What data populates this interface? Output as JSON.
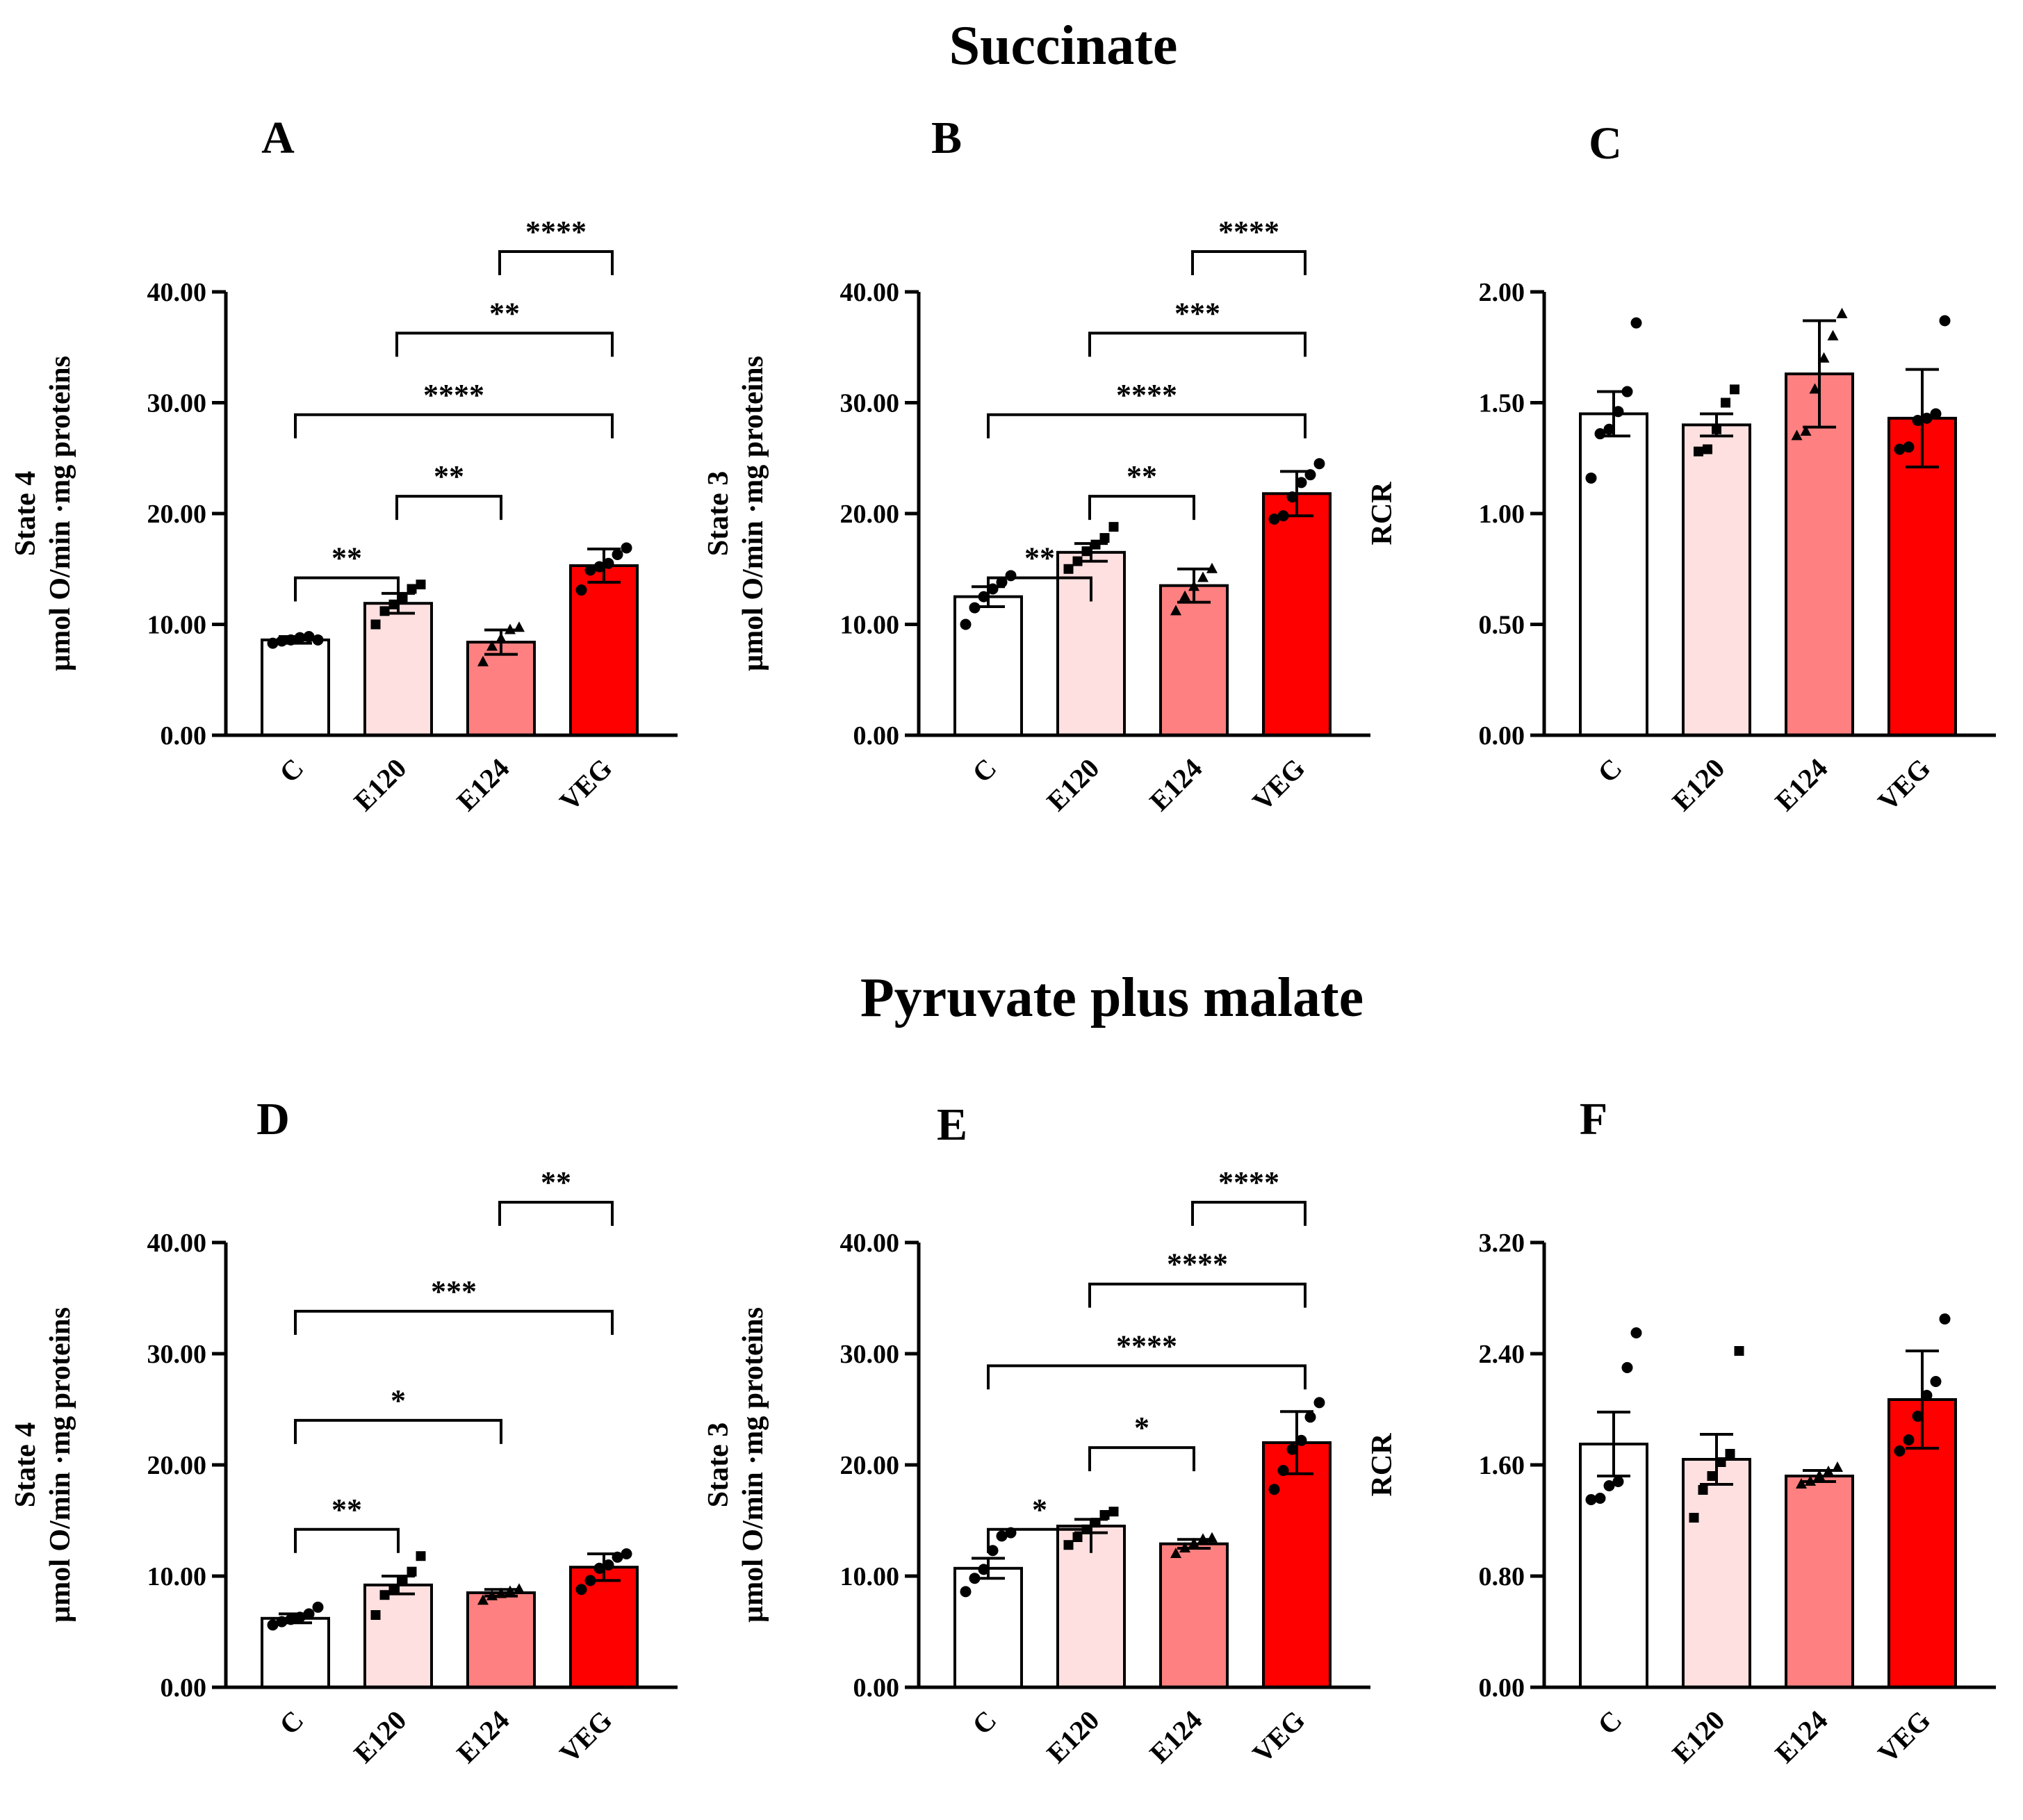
{
  "section_titles": [
    "Succinate",
    "Pyruvate plus malate"
  ],
  "colors": {
    "C": "#ffffff",
    "E120": "#ffe0e0",
    "E124": "#ff8080",
    "VEG": "#ff0000"
  },
  "chart_data": [
    {
      "type": "bar",
      "panel": "A",
      "section": "Succinate",
      "categories": [
        "C",
        "E120",
        "E124",
        "VEG"
      ],
      "values": [
        8.6,
        11.9,
        8.4,
        15.3
      ],
      "sem": [
        0.3,
        0.9,
        1.1,
        1.5
      ],
      "points": [
        [
          8.3,
          8.5,
          8.6,
          8.8,
          8.9,
          8.6
        ],
        [
          10.0,
          11.2,
          11.8,
          12.4,
          13.2,
          13.6
        ],
        [
          6.6,
          8.0,
          8.7,
          9.5,
          9.7
        ],
        [
          13.1,
          14.9,
          15.2,
          15.5,
          16.3,
          16.9
        ]
      ],
      "markers": [
        "circle",
        "square",
        "triangle",
        "circle"
      ],
      "ylabel": [
        "State 4",
        "µmol O/min ·mg proteins"
      ],
      "yticks": [
        "0.00",
        "10.00",
        "20.00",
        "30.00",
        "40.00"
      ],
      "ylim": [
        0,
        40
      ],
      "comparisons": [
        {
          "from": "E124",
          "to": "VEG",
          "label": "****"
        },
        {
          "from": "E120",
          "to": "VEG",
          "label": "**"
        },
        {
          "from": "C",
          "to": "VEG",
          "label": "****"
        },
        {
          "from": "E120",
          "to": "E124",
          "label": "**"
        },
        {
          "from": "C",
          "to": "E120",
          "label": "**"
        }
      ]
    },
    {
      "type": "bar",
      "panel": "B",
      "section": "Succinate",
      "categories": [
        "C",
        "E120",
        "E124",
        "VEG"
      ],
      "values": [
        12.5,
        16.5,
        13.5,
        21.8
      ],
      "sem": [
        0.9,
        0.8,
        1.5,
        2.0
      ],
      "points": [
        [
          10.0,
          11.5,
          12.5,
          13.2,
          13.8,
          14.4
        ],
        [
          15.0,
          15.7,
          16.6,
          17.2,
          17.8,
          18.8
        ],
        [
          11.2,
          12.5,
          13.4,
          14.2,
          15.0
        ],
        [
          19.5,
          19.8,
          21.5,
          22.8,
          23.5,
          24.5
        ]
      ],
      "markers": [
        "circle",
        "square",
        "triangle",
        "circle"
      ],
      "ylabel": [
        "State 3",
        "µmol O/min ·mg proteins"
      ],
      "yticks": [
        "0.00",
        "10.00",
        "20.00",
        "30.00",
        "40.00"
      ],
      "ylim": [
        0,
        40
      ],
      "comparisons": [
        {
          "from": "E124",
          "to": "VEG",
          "label": "****"
        },
        {
          "from": "E120",
          "to": "VEG",
          "label": "***"
        },
        {
          "from": "C",
          "to": "VEG",
          "label": "****"
        },
        {
          "from": "E120",
          "to": "E124",
          "label": "**"
        },
        {
          "from": "C",
          "to": "E120",
          "label": "**"
        }
      ]
    },
    {
      "type": "bar",
      "panel": "C",
      "section": "Succinate",
      "categories": [
        "C",
        "E120",
        "E124",
        "VEG"
      ],
      "values": [
        1.45,
        1.4,
        1.63,
        1.43
      ],
      "sem": [
        0.1,
        0.05,
        0.24,
        0.22
      ],
      "points": [
        [
          1.16,
          1.36,
          1.38,
          1.46,
          1.55,
          1.86
        ],
        [
          1.28,
          1.29,
          1.38,
          1.5,
          1.56
        ],
        [
          1.35,
          1.37,
          1.56,
          1.7,
          1.8,
          1.9
        ],
        [
          1.29,
          1.3,
          1.42,
          1.43,
          1.45,
          1.87
        ]
      ],
      "markers": [
        "circle",
        "square",
        "triangle",
        "circle"
      ],
      "ylabel": [
        "RCR"
      ],
      "yticks": [
        "0.00",
        "0.50",
        "1.00",
        "1.50",
        "2.00"
      ],
      "ylim": [
        0,
        2
      ],
      "comparisons": []
    },
    {
      "type": "bar",
      "panel": "D",
      "section": "Pyruvate plus malate",
      "categories": [
        "C",
        "E120",
        "E124",
        "VEG"
      ],
      "values": [
        6.2,
        9.2,
        8.5,
        10.8
      ],
      "sem": [
        0.4,
        0.8,
        0.3,
        1.2
      ],
      "points": [
        [
          5.6,
          5.9,
          6.1,
          6.3,
          6.6,
          7.2
        ],
        [
          6.5,
          8.3,
          8.8,
          9.6,
          10.4,
          11.8
        ],
        [
          7.8,
          8.2,
          8.4,
          8.6,
          8.8
        ],
        [
          8.8,
          9.6,
          10.7,
          11.0,
          11.7,
          12.0
        ]
      ],
      "markers": [
        "circle",
        "square",
        "triangle",
        "circle"
      ],
      "ylabel": [
        "State 4",
        "µmol O/min ·mg proteins"
      ],
      "yticks": [
        "0.00",
        "10.00",
        "20.00",
        "30.00",
        "40.00"
      ],
      "ylim": [
        0,
        40
      ],
      "comparisons": [
        {
          "from": "E124",
          "to": "VEG",
          "label": "**"
        },
        {
          "from": "C",
          "to": "VEG",
          "label": "***"
        },
        {
          "from": "C",
          "to": "E124",
          "label": "*"
        },
        {
          "from": "C",
          "to": "E120",
          "label": "**"
        }
      ]
    },
    {
      "type": "bar",
      "panel": "E",
      "section": "Pyruvate plus malate",
      "categories": [
        "C",
        "E120",
        "E124",
        "VEG"
      ],
      "values": [
        10.7,
        14.5,
        12.9,
        22.0
      ],
      "sem": [
        0.9,
        0.6,
        0.4,
        2.8
      ],
      "points": [
        [
          8.6,
          9.8,
          10.6,
          12.3,
          13.6,
          13.9
        ],
        [
          12.8,
          13.5,
          14.2,
          14.8,
          15.5,
          15.8
        ],
        [
          12.0,
          12.5,
          12.9,
          13.3,
          13.4
        ],
        [
          17.8,
          19.5,
          21.4,
          22.2,
          24.3,
          25.6
        ]
      ],
      "markers": [
        "circle",
        "square",
        "triangle",
        "circle"
      ],
      "ylabel": [
        "State 3",
        "µmol O/min ·mg proteins"
      ],
      "yticks": [
        "0.00",
        "10.00",
        "20.00",
        "30.00",
        "40.00"
      ],
      "ylim": [
        0,
        40
      ],
      "comparisons": [
        {
          "from": "E124",
          "to": "VEG",
          "label": "****"
        },
        {
          "from": "E120",
          "to": "VEG",
          "label": "****"
        },
        {
          "from": "C",
          "to": "VEG",
          "label": "****"
        },
        {
          "from": "E120",
          "to": "E124",
          "label": "*"
        },
        {
          "from": "C",
          "to": "E120",
          "label": "*"
        }
      ]
    },
    {
      "type": "bar",
      "panel": "F",
      "section": "Pyruvate plus malate",
      "categories": [
        "C",
        "E120",
        "E124",
        "VEG"
      ],
      "values": [
        1.75,
        1.64,
        1.52,
        2.07
      ],
      "sem": [
        0.23,
        0.18,
        0.04,
        0.35
      ],
      "points": [
        [
          1.35,
          1.36,
          1.45,
          1.48,
          2.3,
          2.55
        ],
        [
          1.22,
          1.42,
          1.52,
          1.62,
          1.68,
          2.42
        ],
        [
          1.46,
          1.48,
          1.52,
          1.55,
          1.58
        ],
        [
          1.7,
          1.78,
          1.95,
          2.1,
          2.2,
          2.65
        ]
      ],
      "markers": [
        "circle",
        "square",
        "triangle",
        "circle"
      ],
      "ylabel": [
        "RCR"
      ],
      "yticks": [
        "0.00",
        "0.80",
        "1.60",
        "2.40",
        "3.20"
      ],
      "ylim": [
        0,
        3.2
      ],
      "comparisons": []
    }
  ]
}
